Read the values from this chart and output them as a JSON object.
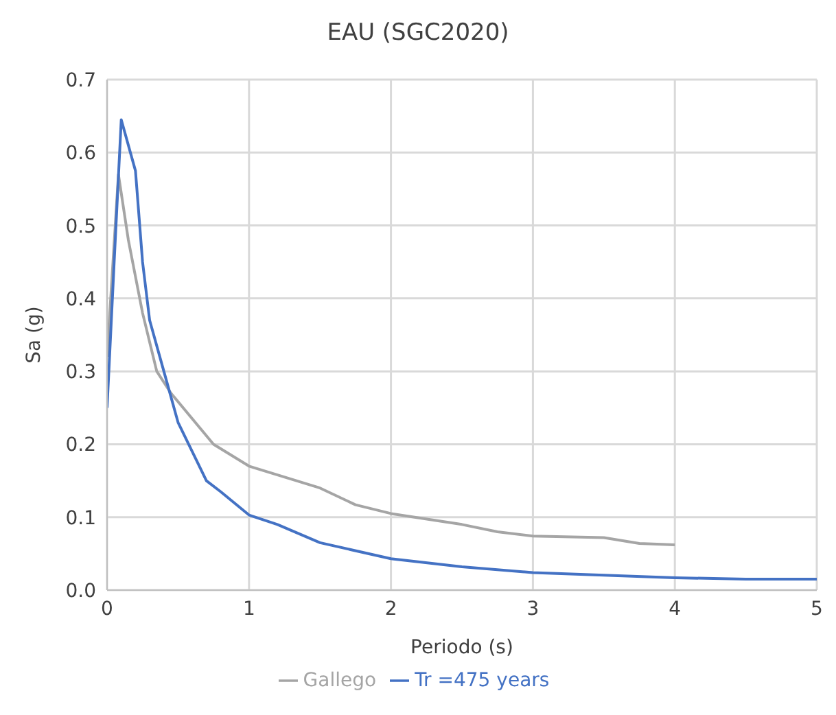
{
  "chart_data": {
    "type": "line",
    "title": "EAU (SGC2020)",
    "xlabel": "Periodo (s)",
    "ylabel": "Sa (g)",
    "xlim": [
      0,
      5
    ],
    "xticks": [
      0,
      1,
      2,
      3,
      4,
      5
    ],
    "ylim": [
      0,
      0.7
    ],
    "yticks": [
      {
        "value": 0,
        "label": "0.0"
      },
      {
        "value": 0.1,
        "label": "0.1"
      },
      {
        "value": 0.2,
        "label": "0.2"
      },
      {
        "value": 0.3,
        "label": "0.3"
      },
      {
        "value": 0.4,
        "label": "0.4"
      },
      {
        "value": 0.5,
        "label": "0.5"
      },
      {
        "value": 0.6,
        "label": "0.6"
      },
      {
        "value": 0.7,
        "label": "0.7"
      }
    ],
    "grid": true,
    "legend": "bottom",
    "marker": "none",
    "line_style": "solid",
    "series": [
      {
        "name": "Gallego",
        "color": "#a5a5a5",
        "x": [
          0,
          0.08,
          0.15,
          0.25,
          0.35,
          0.45,
          0.75,
          1,
          1.5,
          1.75,
          2,
          2.5,
          2.75,
          3,
          3.5,
          3.75,
          4
        ],
        "values": [
          0.32,
          0.57,
          0.48,
          0.38,
          0.3,
          0.27,
          0.2,
          0.17,
          0.14,
          0.117,
          0.105,
          0.09,
          0.08,
          0.074,
          0.072,
          0.064,
          0.062
        ]
      },
      {
        "name": "Tr =475 years",
        "color": "#4472c4",
        "x": [
          0,
          0.05,
          0.1,
          0.2,
          0.25,
          0.3,
          0.4,
          0.5,
          0.6,
          0.7,
          0.8,
          1,
          1.2,
          1.5,
          2,
          2.5,
          3,
          4,
          4.5,
          5
        ],
        "values": [
          0.25,
          0.45,
          0.645,
          0.575,
          0.45,
          0.37,
          0.3,
          0.23,
          0.19,
          0.15,
          0.135,
          0.103,
          0.09,
          0.065,
          0.043,
          0.032,
          0.024,
          0.017,
          0.015,
          0.015
        ]
      }
    ]
  }
}
